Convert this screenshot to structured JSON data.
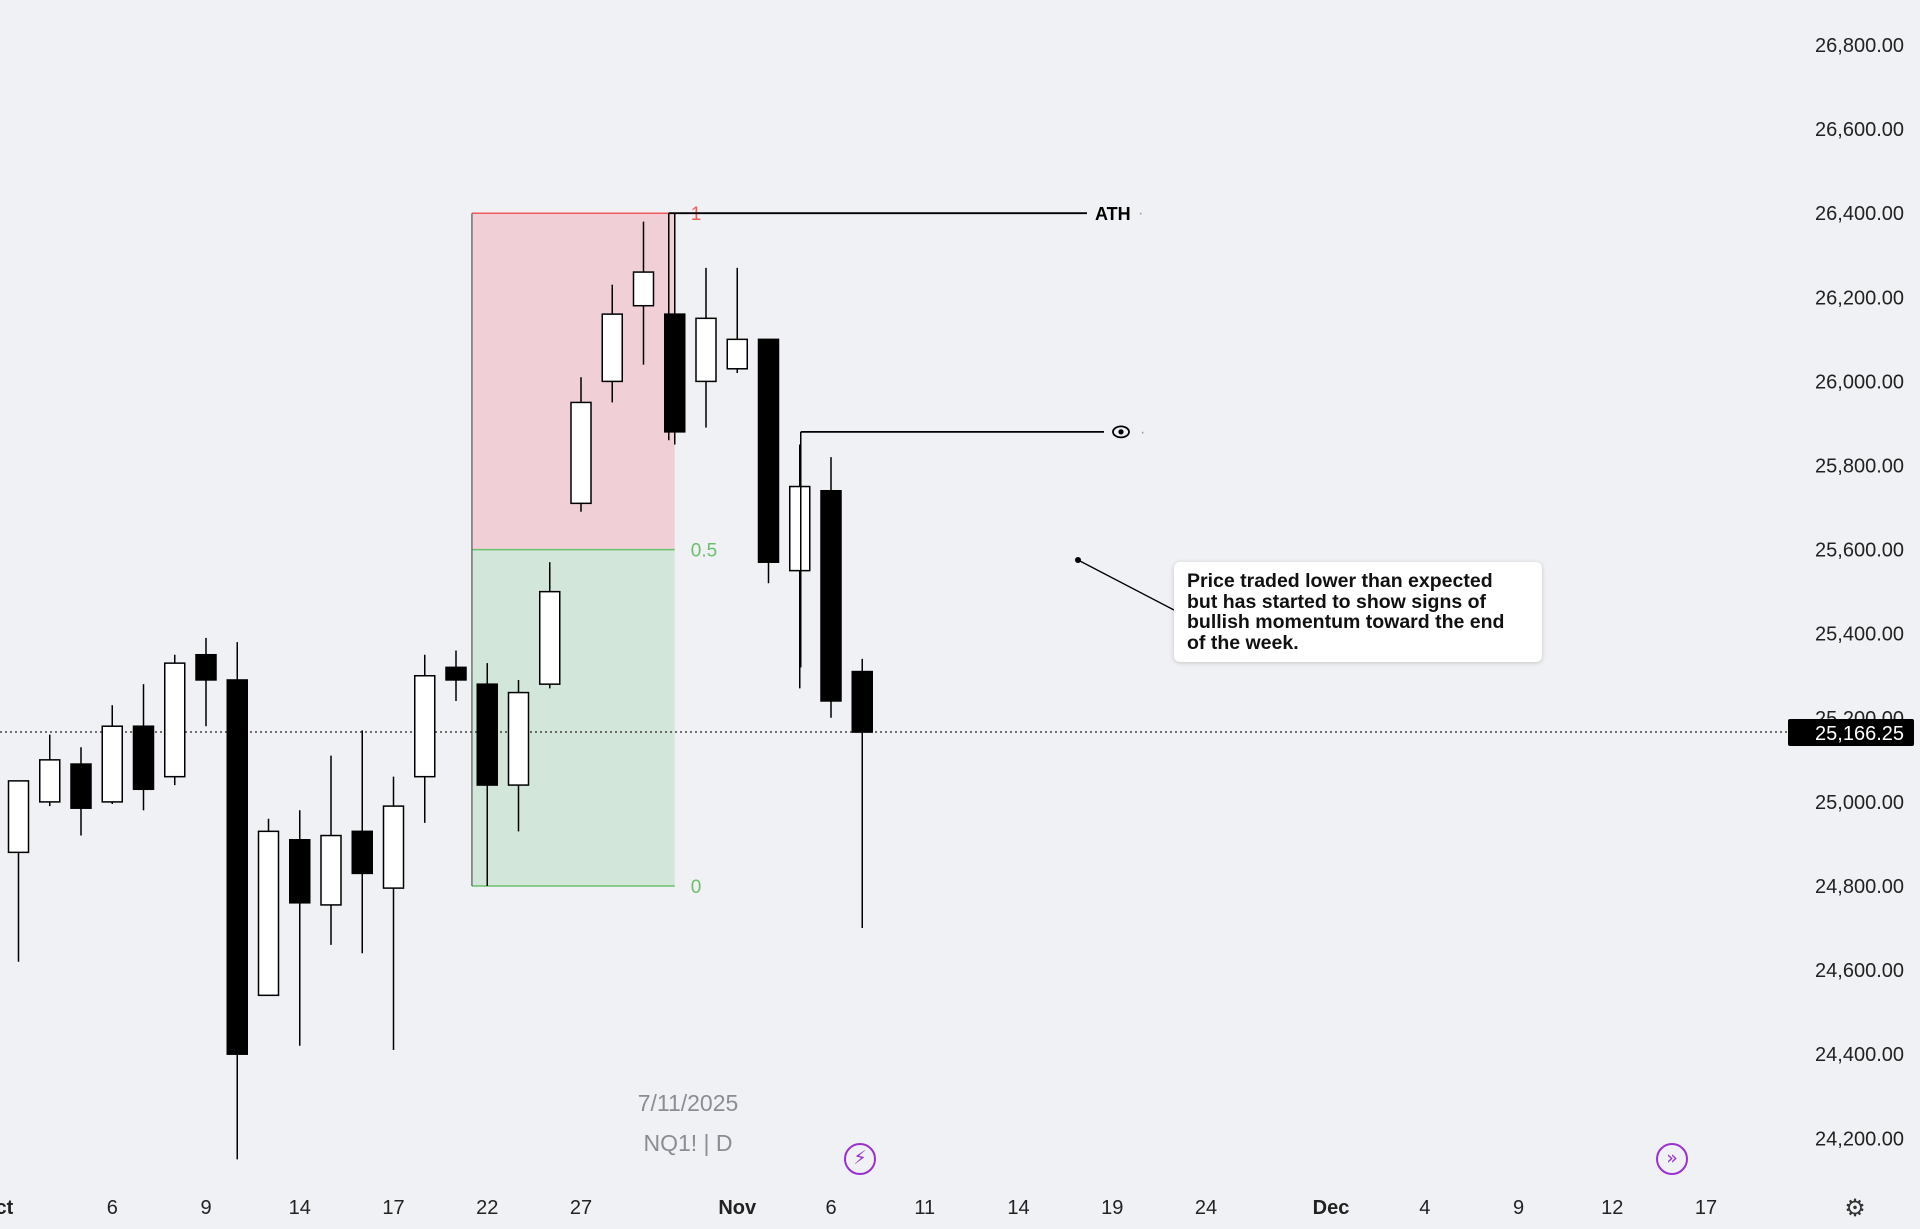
{
  "chart_data": {
    "type": "candlestick",
    "symbol": "NQ1!",
    "interval": "D",
    "watermark_date": "7/11/2025",
    "watermark_symbol": "NQ1! | D",
    "ylim": [
      24050,
      26900
    ],
    "y_ticks": [
      "26,800.00",
      "26,600.00",
      "26,400.00",
      "26,200.00",
      "26,000.00",
      "25,800.00",
      "25,600.00",
      "25,400.00",
      "25,200.00",
      "25,000.00",
      "24,800.00",
      "24,600.00",
      "24,400.00",
      "24,200.00"
    ],
    "y_tick_values": [
      26800,
      26600,
      26400,
      26200,
      26000,
      25800,
      25600,
      25400,
      25200,
      25000,
      24800,
      24600,
      24400,
      24200
    ],
    "x_ticks": [
      {
        "label": "Oct",
        "bar": -0.7,
        "bold": true
      },
      {
        "label": "6",
        "bar": 3
      },
      {
        "label": "9",
        "bar": 6
      },
      {
        "label": "14",
        "bar": 9
      },
      {
        "label": "17",
        "bar": 12
      },
      {
        "label": "22",
        "bar": 15
      },
      {
        "label": "27",
        "bar": 18
      },
      {
        "label": "Nov",
        "bar": 23,
        "bold": true
      },
      {
        "label": "6",
        "bar": 26
      },
      {
        "label": "11",
        "bar": 29
      },
      {
        "label": "14",
        "bar": 32
      },
      {
        "label": "19",
        "bar": 35
      },
      {
        "label": "24",
        "bar": 38
      },
      {
        "label": "Dec",
        "bar": 42,
        "bold": true
      },
      {
        "label": "4",
        "bar": 45
      },
      {
        "label": "9",
        "bar": 48
      },
      {
        "label": "12",
        "bar": 51
      },
      {
        "label": "17",
        "bar": 54
      }
    ],
    "candles": [
      {
        "o": 24880,
        "h": 25030,
        "l": 24620,
        "c": 25050
      },
      {
        "o": 25000,
        "h": 25160,
        "l": 24990,
        "c": 25100
      },
      {
        "o": 25090,
        "h": 25130,
        "l": 24920,
        "c": 24985
      },
      {
        "o": 25000,
        "h": 25230,
        "l": 24995,
        "c": 25180
      },
      {
        "o": 25180,
        "h": 25280,
        "l": 24980,
        "c": 25030
      },
      {
        "o": 25060,
        "h": 25350,
        "l": 25040,
        "c": 25330
      },
      {
        "o": 25350,
        "h": 25390,
        "l": 25180,
        "c": 25290
      },
      {
        "o": 25290,
        "h": 25380,
        "l": 24150,
        "c": 24400
      },
      {
        "o": 24540,
        "h": 24960,
        "l": 24540,
        "c": 24930
      },
      {
        "o": 24910,
        "h": 24980,
        "l": 24420,
        "c": 24760
      },
      {
        "o": 24755,
        "h": 25110,
        "l": 24660,
        "c": 24920
      },
      {
        "o": 24930,
        "h": 25170,
        "l": 24640,
        "c": 24830
      },
      {
        "o": 24795,
        "h": 25060,
        "l": 24410,
        "c": 24990
      },
      {
        "o": 25060,
        "h": 25350,
        "l": 24950,
        "c": 25300
      },
      {
        "o": 25320,
        "h": 25360,
        "l": 25240,
        "c": 25290
      },
      {
        "o": 25280,
        "h": 25330,
        "l": 24800,
        "c": 25040
      },
      {
        "o": 25040,
        "h": 25290,
        "l": 24930,
        "c": 25260
      },
      {
        "o": 25280,
        "h": 25570,
        "l": 25270,
        "c": 25500
      },
      {
        "o": 25710,
        "h": 26010,
        "l": 25690,
        "c": 25950
      },
      {
        "o": 26000,
        "h": 26230,
        "l": 25950,
        "c": 26160
      },
      {
        "o": 26180,
        "h": 26380,
        "l": 26040,
        "c": 26260
      },
      {
        "o": 26160,
        "h": 26400,
        "l": 25850,
        "c": 25880
      },
      {
        "o": 26000,
        "h": 26270,
        "l": 25890,
        "c": 26150
      },
      {
        "o": 26030,
        "h": 26270,
        "l": 26020,
        "c": 26100
      },
      {
        "o": 26100,
        "h": 26100,
        "l": 25520,
        "c": 25570
      },
      {
        "o": 25550,
        "h": 25850,
        "l": 25270,
        "c": 25750
      },
      {
        "o": 25740,
        "h": 25820,
        "l": 25200,
        "c": 25240
      },
      {
        "o": 25310,
        "h": 25340,
        "l": 24700,
        "c": 25166
      }
    ],
    "current_price": "25,166.25",
    "current_price_value": 25166.25,
    "fib": {
      "levels": [
        {
          "label": "1",
          "value": 26400,
          "color": "#f05a5a"
        },
        {
          "label": "0.5",
          "value": 25600,
          "color": "#6cbf6c"
        },
        {
          "label": "0",
          "value": 24800,
          "color": "#6cbf6c"
        }
      ],
      "top_fill": "#f0d0d6",
      "bottom_fill": "#d3e6da",
      "bar_from": 15,
      "bar_to": 21
    },
    "ath_line": {
      "label": "ATH",
      "value": 26400,
      "bar_from": 21,
      "bar_to": 25.5
    },
    "eye_line": {
      "value": 25880,
      "bar_from": 25,
      "bar_to": 24.8,
      "icon": "eye-icon"
    },
    "annotation": {
      "text": "Price traded lower than expected but has started to show signs of bullish momentum toward the end of the week.",
      "anchor_bar": 34.4,
      "anchor_value": 25580
    },
    "markers": [
      {
        "icon": "lightning-icon",
        "bar": 27
      },
      {
        "icon": "forward-arrow-icon",
        "bar": 53
      }
    ]
  },
  "icons": {
    "settings": "gear-icon"
  }
}
